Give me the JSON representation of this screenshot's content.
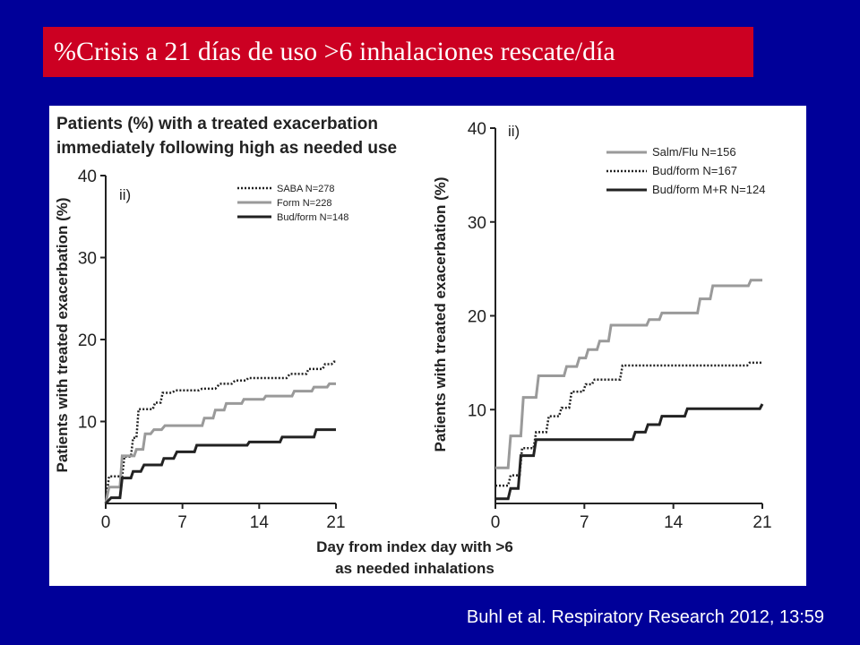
{
  "slide_title": "%Crisis a 21 días de uso >6 inhalaciones rescate/día",
  "citation": "Buhl et al. Respiratory Research 2012, 13:59",
  "figure": {
    "left_title_line1": "Patients (%) with a treated exacerbation",
    "left_title_line2": "immediately following high as needed use",
    "shared_xlabel_line1": "Day from index day with >6",
    "shared_xlabel_line2": "as needed inhalations"
  },
  "chart_data": [
    {
      "type": "line",
      "panel_label": "ii)",
      "ylabel": "Patients with treated exacerbation (%)",
      "xlim": [
        0,
        21
      ],
      "ylim": [
        0,
        40
      ],
      "x_ticks": [
        0,
        7,
        14,
        21
      ],
      "y_ticks": [
        10,
        20,
        30,
        40
      ],
      "step": true,
      "series": [
        {
          "name": "SABA N=278",
          "style": "dotted",
          "color": "#222222",
          "points": [
            [
              0,
              0
            ],
            [
              0.3,
              3.3
            ],
            [
              1.5,
              3.3
            ],
            [
              1.7,
              5.7
            ],
            [
              2.3,
              5.7
            ],
            [
              2.5,
              8
            ],
            [
              2.8,
              8
            ],
            [
              3,
              11.5
            ],
            [
              4.3,
              11.5
            ],
            [
              4.5,
              12.3
            ],
            [
              5,
              12.3
            ],
            [
              5.2,
              13.5
            ],
            [
              6,
              13.5
            ],
            [
              6.4,
              13.8
            ],
            [
              8.5,
              13.8
            ],
            [
              8.8,
              14
            ],
            [
              10,
              14
            ],
            [
              10.4,
              14.6
            ],
            [
              11.5,
              14.6
            ],
            [
              11.8,
              15
            ],
            [
              12.8,
              15
            ],
            [
              13,
              15.3
            ],
            [
              16.5,
              15.3
            ],
            [
              16.8,
              15.8
            ],
            [
              18.3,
              15.8
            ],
            [
              18.5,
              16.4
            ],
            [
              19.8,
              16.4
            ],
            [
              20,
              17
            ],
            [
              20.6,
              17
            ],
            [
              20.8,
              17.3
            ],
            [
              21,
              17.3
            ]
          ]
        },
        {
          "name": "Form N=228",
          "style": "solid",
          "color": "#9a9a9a",
          "points": [
            [
              0,
              0
            ],
            [
              0.3,
              2
            ],
            [
              1.3,
              2
            ],
            [
              1.5,
              5.8
            ],
            [
              2.6,
              5.8
            ],
            [
              2.8,
              6.6
            ],
            [
              3.4,
              6.6
            ],
            [
              3.6,
              8.5
            ],
            [
              4.1,
              8.5
            ],
            [
              4.4,
              9
            ],
            [
              5.1,
              9
            ],
            [
              5.4,
              9.5
            ],
            [
              8.8,
              9.5
            ],
            [
              9,
              10.4
            ],
            [
              9.8,
              10.4
            ],
            [
              10,
              11.4
            ],
            [
              10.8,
              11.4
            ],
            [
              11,
              12.2
            ],
            [
              12.4,
              12.2
            ],
            [
              12.6,
              12.7
            ],
            [
              14.4,
              12.7
            ],
            [
              14.6,
              13.1
            ],
            [
              17,
              13.1
            ],
            [
              17.2,
              13.7
            ],
            [
              18.8,
              13.7
            ],
            [
              19,
              14.2
            ],
            [
              20.2,
              14.2
            ],
            [
              20.4,
              14.6
            ],
            [
              21,
              14.6
            ]
          ]
        },
        {
          "name": "Bud/form N=148",
          "style": "solid",
          "color": "#222222",
          "points": [
            [
              0,
              0
            ],
            [
              0.5,
              0.7
            ],
            [
              1.3,
              0.7
            ],
            [
              1.5,
              3.1
            ],
            [
              2.3,
              3.1
            ],
            [
              2.5,
              3.9
            ],
            [
              3.2,
              3.9
            ],
            [
              3.5,
              4.7
            ],
            [
              5.1,
              4.7
            ],
            [
              5.3,
              5.5
            ],
            [
              6.2,
              5.5
            ],
            [
              6.5,
              6.3
            ],
            [
              8.1,
              6.3
            ],
            [
              8.3,
              7.1
            ],
            [
              12.9,
              7.1
            ],
            [
              13.1,
              7.5
            ],
            [
              15.9,
              7.5
            ],
            [
              16.1,
              8.1
            ],
            [
              19,
              8.1
            ],
            [
              19.2,
              9
            ],
            [
              21,
              9
            ]
          ]
        }
      ]
    },
    {
      "type": "line",
      "panel_label": "ii)",
      "ylabel": "Patients with treated exacerbation (%)",
      "xlim": [
        0,
        21
      ],
      "ylim": [
        0,
        40
      ],
      "x_ticks": [
        0,
        7,
        14,
        21
      ],
      "y_ticks": [
        10,
        20,
        30,
        40
      ],
      "step": true,
      "series": [
        {
          "name": "Salm/Flu N=156",
          "style": "solid",
          "color": "#9a9a9a",
          "points": [
            [
              0,
              3.8
            ],
            [
              1,
              3.8
            ],
            [
              1.2,
              7.2
            ],
            [
              2,
              7.2
            ],
            [
              2.2,
              11.3
            ],
            [
              3.2,
              11.3
            ],
            [
              3.4,
              13.6
            ],
            [
              5.4,
              13.6
            ],
            [
              5.6,
              14.6
            ],
            [
              6.4,
              14.6
            ],
            [
              6.6,
              15.5
            ],
            [
              7.1,
              15.5
            ],
            [
              7.3,
              16.4
            ],
            [
              8,
              16.4
            ],
            [
              8.2,
              17.3
            ],
            [
              8.9,
              17.3
            ],
            [
              9.1,
              19
            ],
            [
              11.9,
              19
            ],
            [
              12.1,
              19.6
            ],
            [
              12.9,
              19.6
            ],
            [
              13.1,
              20.3
            ],
            [
              15.9,
              20.3
            ],
            [
              16.1,
              21.8
            ],
            [
              16.9,
              21.8
            ],
            [
              17.1,
              23.2
            ],
            [
              19.9,
              23.2
            ],
            [
              20.1,
              23.8
            ],
            [
              21,
              23.8
            ]
          ]
        },
        {
          "name": "Bud/form N=167",
          "style": "dotted",
          "color": "#222222",
          "points": [
            [
              0,
              1.9
            ],
            [
              1,
              1.9
            ],
            [
              1.2,
              3
            ],
            [
              1.9,
              3
            ],
            [
              2.1,
              5.9
            ],
            [
              3,
              5.9
            ],
            [
              3.2,
              7.6
            ],
            [
              4,
              7.6
            ],
            [
              4.2,
              9.3
            ],
            [
              5,
              9.3
            ],
            [
              5.2,
              10.2
            ],
            [
              5.8,
              10.2
            ],
            [
              6,
              11.9
            ],
            [
              6.9,
              11.9
            ],
            [
              7.1,
              12.7
            ],
            [
              7.6,
              12.7
            ],
            [
              7.8,
              13.2
            ],
            [
              9.8,
              13.2
            ],
            [
              10,
              14.7
            ],
            [
              19.8,
              14.7
            ],
            [
              20,
              15
            ],
            [
              21,
              15
            ]
          ]
        },
        {
          "name": "Bud/form M+R N=124",
          "style": "solid",
          "color": "#222222",
          "points": [
            [
              0,
              0.5
            ],
            [
              1,
              0.5
            ],
            [
              1.2,
              1.6
            ],
            [
              1.8,
              1.6
            ],
            [
              2,
              5.1
            ],
            [
              3,
              5.1
            ],
            [
              3.2,
              6.8
            ],
            [
              10.8,
              6.8
            ],
            [
              11,
              7.6
            ],
            [
              11.8,
              7.6
            ],
            [
              12,
              8.4
            ],
            [
              12.9,
              8.4
            ],
            [
              13.1,
              9.3
            ],
            [
              14.9,
              9.3
            ],
            [
              15.1,
              10.1
            ],
            [
              20.8,
              10.1
            ],
            [
              21,
              10.6
            ]
          ]
        }
      ]
    }
  ]
}
